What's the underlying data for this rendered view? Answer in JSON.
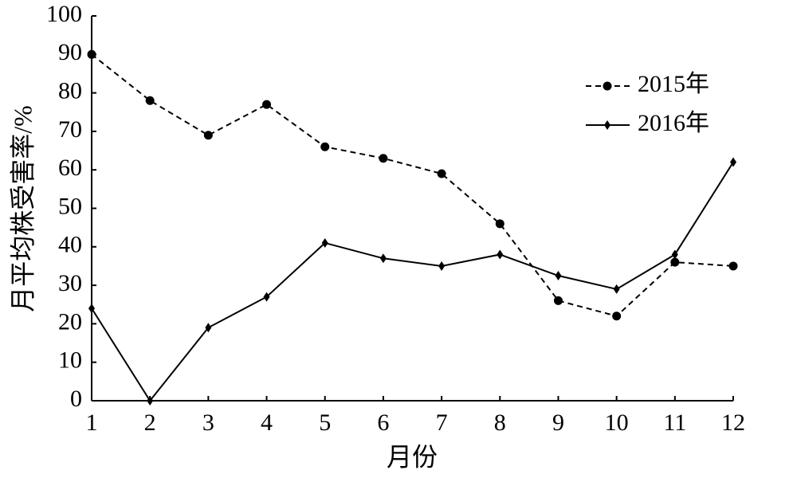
{
  "chart_data": {
    "type": "line",
    "x_label": "月份",
    "y_label": "月平均株受害率/%",
    "x": [
      1,
      2,
      3,
      4,
      5,
      6,
      7,
      8,
      9,
      10,
      11,
      12
    ],
    "xlim": [
      1,
      12
    ],
    "xticks": [
      1,
      2,
      3,
      4,
      5,
      6,
      7,
      8,
      9,
      10,
      11,
      12
    ],
    "ylim": [
      0,
      100
    ],
    "yticks": [
      0,
      10,
      20,
      30,
      40,
      50,
      60,
      70,
      80,
      90,
      100
    ],
    "grid": false,
    "legend": "upper-right",
    "series": [
      {
        "name": "2015年",
        "color": "#000000",
        "dash": "dashed",
        "marker": "circle",
        "values": [
          90,
          78,
          69,
          77,
          66,
          63,
          59,
          46,
          26,
          22,
          36,
          35
        ]
      },
      {
        "name": "2016年",
        "color": "#000000",
        "dash": "solid",
        "marker": "diamond",
        "values": [
          24,
          0,
          19,
          27,
          41,
          37,
          35,
          38,
          32.5,
          29,
          38,
          62
        ]
      }
    ]
  }
}
